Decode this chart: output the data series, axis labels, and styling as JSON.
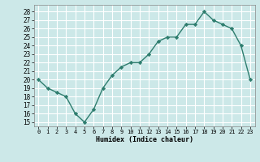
{
  "xlabel": "Humidex (Indice chaleur)",
  "x": [
    0,
    1,
    2,
    3,
    4,
    5,
    6,
    7,
    8,
    9,
    10,
    11,
    12,
    13,
    14,
    15,
    16,
    17,
    18,
    19,
    20,
    21,
    22,
    23
  ],
  "y": [
    20,
    19,
    18.5,
    18,
    16,
    15,
    16.5,
    19,
    20.5,
    21.5,
    22,
    22,
    23,
    24.5,
    25,
    25,
    26.5,
    26.5,
    28,
    27,
    26.5,
    26,
    24,
    20
  ],
  "line_color": "#2e7d6e",
  "bg_color": "#cce8e8",
  "grid_color": "#ffffff",
  "yticks": [
    15,
    16,
    17,
    18,
    19,
    20,
    21,
    22,
    23,
    24,
    25,
    26,
    27,
    28
  ],
  "xticks": [
    0,
    1,
    2,
    3,
    4,
    5,
    6,
    7,
    8,
    9,
    10,
    11,
    12,
    13,
    14,
    15,
    16,
    17,
    18,
    19,
    20,
    21,
    22,
    23
  ],
  "xlim": [
    -0.5,
    23.5
  ],
  "ylim": [
    14.5,
    28.8
  ]
}
